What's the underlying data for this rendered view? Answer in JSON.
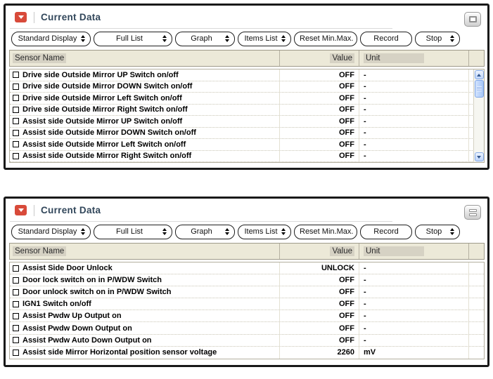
{
  "colors": {
    "panel_border": "#1a1a1a",
    "accent_red": "#d84a3a",
    "title_text": "#31465a",
    "table_header_bg": "#ece9d8",
    "header_label_highlight": "#d6d2c4",
    "scrollbar_blue": "#a5c6f8"
  },
  "panels": [
    {
      "title": "Current Data",
      "corner_icon": "maximize-square-icon",
      "toolbar": [
        {
          "label": "Standard Display",
          "has_arrows": true
        },
        {
          "label": "Full List",
          "has_arrows": true
        },
        {
          "label": "Graph",
          "has_arrows": true
        },
        {
          "label": "Items List",
          "has_arrows": true
        },
        {
          "label": "Reset Min.Max.",
          "has_arrows": false
        },
        {
          "label": "Record",
          "has_arrows": false
        },
        {
          "label": "Stop",
          "has_arrows": true
        }
      ],
      "columns": {
        "sensor": "Sensor Name",
        "value": "Value",
        "unit": "Unit"
      },
      "rows": [
        {
          "checked": false,
          "name": "Drive side Outside Mirror UP Switch on/off",
          "value": "OFF",
          "unit": "-"
        },
        {
          "checked": false,
          "name": "Drive side Outside Mirror DOWN Switch on/off",
          "value": "OFF",
          "unit": "-"
        },
        {
          "checked": false,
          "name": "Drive side Outside Mirror Left Switch on/off",
          "value": "OFF",
          "unit": "-"
        },
        {
          "checked": false,
          "name": "Drive side Outside Mirror Right Switch on/off",
          "value": "OFF",
          "unit": "-"
        },
        {
          "checked": false,
          "name": "Assist side Outside Mirror UP Switch on/off",
          "value": "OFF",
          "unit": "-"
        },
        {
          "checked": false,
          "name": "Assist side Outside Mirror DOWN Switch on/off",
          "value": "OFF",
          "unit": "-"
        },
        {
          "checked": false,
          "name": "Assist side Outside Mirror Left Switch on/off",
          "value": "OFF",
          "unit": "-"
        },
        {
          "checked": false,
          "name": "Assist side Outside Mirror Right Switch on/off",
          "value": "OFF",
          "unit": "-"
        }
      ],
      "scrollbar": true
    },
    {
      "title": "Current Data",
      "corner_icon": "split-horizontal-icon",
      "toolbar": [
        {
          "label": "Standard Display",
          "has_arrows": true
        },
        {
          "label": "Full List",
          "has_arrows": true
        },
        {
          "label": "Graph",
          "has_arrows": true
        },
        {
          "label": "Items List",
          "has_arrows": true
        },
        {
          "label": "Reset Min.Max.",
          "has_arrows": false
        },
        {
          "label": "Record",
          "has_arrows": false
        },
        {
          "label": "Stop",
          "has_arrows": true
        }
      ],
      "columns": {
        "sensor": "Sensor Name",
        "value": "Value",
        "unit": "Unit"
      },
      "rows": [
        {
          "checked": false,
          "name": "Assist Side Door Unlock",
          "value": "UNLOCK",
          "unit": "-"
        },
        {
          "checked": false,
          "name": "Door lock switch on in P/WDW Switch",
          "value": "OFF",
          "unit": "-"
        },
        {
          "checked": false,
          "name": "Door unlock switch on in P/WDW Switch",
          "value": "OFF",
          "unit": "-"
        },
        {
          "checked": false,
          "name": "IGN1 Switch on/off",
          "value": "OFF",
          "unit": "-"
        },
        {
          "checked": false,
          "name": "Assist Pwdw Up Output on",
          "value": "OFF",
          "unit": "-"
        },
        {
          "checked": false,
          "name": "Assist Pwdw Down Output on",
          "value": "OFF",
          "unit": "-"
        },
        {
          "checked": false,
          "name": "Assist Pwdw Auto Down Output on",
          "value": "OFF",
          "unit": "-"
        },
        {
          "checked": false,
          "name": "Assist side Mirror Horizontal position sensor voltage",
          "value": "2260",
          "unit": "mV"
        }
      ],
      "scrollbar": false
    }
  ]
}
